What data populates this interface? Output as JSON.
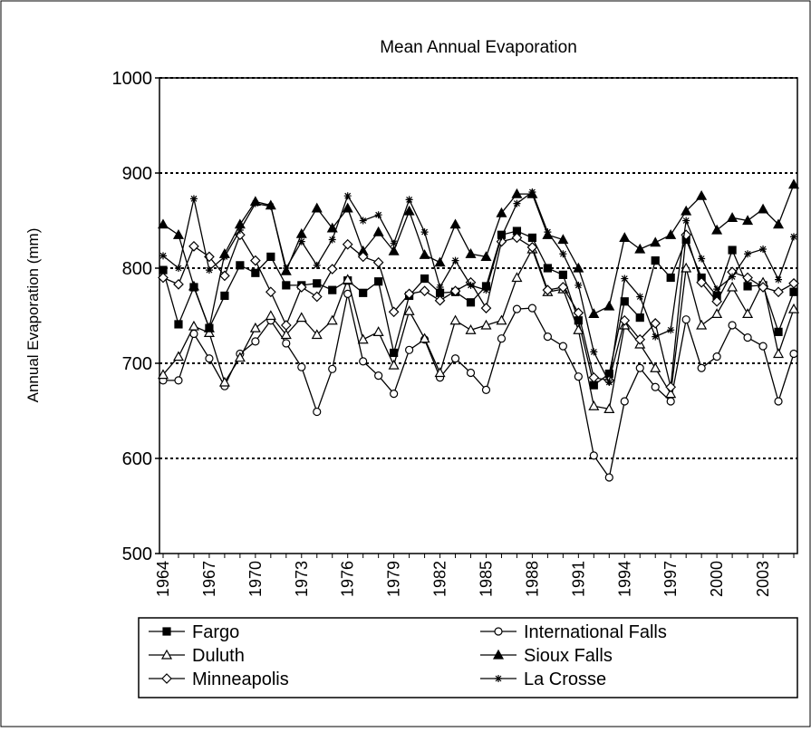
{
  "chart_data": {
    "type": "line",
    "title": "Mean Annual Evaporation",
    "y_label": "Annual Evaporation (mm)",
    "categories": [
      "1964",
      null,
      null,
      "1967",
      null,
      null,
      "1970",
      null,
      null,
      "1973",
      null,
      null,
      "1976",
      null,
      null,
      "1979",
      null,
      null,
      "1982",
      null,
      null,
      "1985",
      null,
      null,
      "1988",
      null,
      null,
      "1991",
      null,
      null,
      "1994",
      null,
      null,
      "1997",
      null,
      null,
      "2000",
      null,
      null,
      "2003",
      null,
      null
    ],
    "ylim": [
      500,
      1000
    ],
    "yticks": [
      500,
      600,
      700,
      800,
      900,
      1000
    ],
    "grid": true,
    "legend": "bottom",
    "series": [
      {
        "name": "Fargo",
        "color": "#000000",
        "marker": "square-filled",
        "values": [
          798,
          741,
          780,
          737,
          771,
          803,
          795,
          812,
          782,
          782,
          784,
          777,
          787,
          774,
          786,
          711,
          771,
          789,
          774,
          775,
          764,
          781,
          835,
          839,
          832,
          800,
          793,
          745,
          677,
          689,
          765,
          748,
          808,
          790,
          830,
          790,
          771,
          819,
          781,
          782,
          733,
          775
        ]
      },
      {
        "name": "International Falls",
        "color": "#000000",
        "marker": "circle-open",
        "values": [
          682,
          682,
          731,
          705,
          676,
          710,
          723,
          745,
          721,
          696,
          649,
          694,
          773,
          702,
          687,
          668,
          714,
          725,
          685,
          705,
          690,
          672,
          726,
          757,
          758,
          728,
          718,
          686,
          603,
          580,
          660,
          695,
          675,
          660,
          746,
          695,
          707,
          740,
          727,
          718,
          660,
          710
        ]
      },
      {
        "name": "Duluth",
        "color": "#000000",
        "marker": "triangle-open",
        "values": [
          688,
          707,
          739,
          732,
          680,
          706,
          737,
          750,
          730,
          748,
          730,
          745,
          788,
          725,
          733,
          698,
          755,
          726,
          690,
          745,
          735,
          740,
          745,
          790,
          820,
          775,
          778,
          735,
          655,
          652,
          740,
          720,
          695,
          668,
          800,
          740,
          752,
          780,
          752,
          785,
          710,
          757
        ]
      },
      {
        "name": "Sioux Falls",
        "color": "#000000",
        "marker": "triangle-filled",
        "values": [
          846,
          835,
          781,
          737,
          815,
          846,
          870,
          866,
          797,
          836,
          863,
          842,
          863,
          818,
          838,
          818,
          860,
          814,
          806,
          846,
          815,
          812,
          858,
          878,
          878,
          835,
          830,
          800,
          752,
          760,
          832,
          820,
          827,
          835,
          860,
          876,
          840,
          853,
          850,
          862,
          846,
          888
        ]
      },
      {
        "name": "Minneapolis",
        "color": "#000000",
        "marker": "diamond-open",
        "values": [
          790,
          783,
          823,
          812,
          792,
          835,
          808,
          775,
          740,
          780,
          770,
          799,
          825,
          812,
          806,
          754,
          773,
          776,
          766,
          776,
          785,
          758,
          828,
          832,
          822,
          777,
          780,
          753,
          685,
          682,
          745,
          725,
          742,
          675,
          835,
          785,
          765,
          796,
          790,
          780,
          775,
          784
        ]
      },
      {
        "name": "La Crosse",
        "color": "#000000",
        "marker": "asterisk",
        "values": [
          813,
          800,
          873,
          798,
          812,
          840,
          868,
          865,
          800,
          828,
          803,
          830,
          876,
          850,
          856,
          826,
          872,
          838,
          780,
          808,
          782,
          777,
          833,
          868,
          880,
          838,
          815,
          782,
          712,
          680,
          789,
          770,
          728,
          735,
          850,
          810,
          778,
          791,
          815,
          820,
          788,
          833
        ]
      }
    ]
  }
}
